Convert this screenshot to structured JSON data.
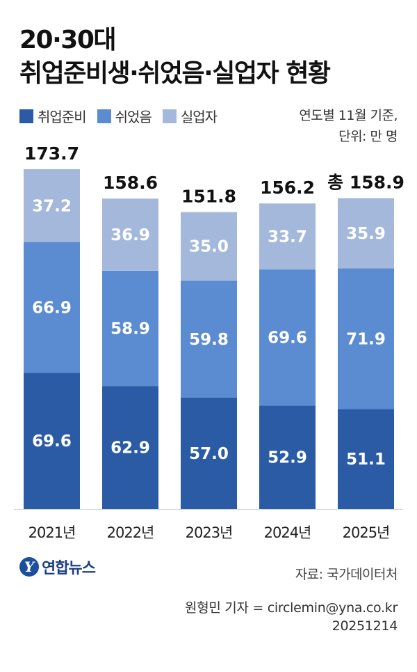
{
  "title": {
    "line1": "20·30대",
    "line2": "취업준비생·쉬었음·실업자 현황"
  },
  "legend": [
    {
      "label": "취업준비",
      "color": "#2b5ba5"
    },
    {
      "label": "쉬었음",
      "color": "#5b8bd0"
    },
    {
      "label": "실업자",
      "color": "#a4b8dc"
    }
  ],
  "note": {
    "line1": "연도별 11월 기준,",
    "line2": "단위: 만 명"
  },
  "chart_data": {
    "type": "bar",
    "stacked": true,
    "categories": [
      "2021년",
      "2022년",
      "2023년",
      "2024년",
      "2025년"
    ],
    "series": [
      {
        "name": "취업준비",
        "values": [
          69.6,
          62.9,
          57.0,
          52.9,
          51.1
        ],
        "color": "#2b5ba5",
        "labels": [
          "69.6",
          "62.9",
          "57.0",
          "52.9",
          "51.1"
        ]
      },
      {
        "name": "쉬었음",
        "values": [
          66.9,
          58.9,
          59.8,
          69.6,
          71.9
        ],
        "color": "#5b8bd0",
        "labels": [
          "66.9",
          "58.9",
          "59.8",
          "69.6",
          "71.9"
        ]
      },
      {
        "name": "실업자",
        "values": [
          37.2,
          36.9,
          35.0,
          33.7,
          35.9
        ],
        "color": "#a4b8dc",
        "labels": [
          "37.2",
          "36.9",
          "35.0",
          "33.7",
          "35.9"
        ]
      }
    ],
    "totals": [
      173.7,
      158.6,
      151.8,
      156.2,
      158.9
    ],
    "total_labels": [
      "173.7",
      "158.6",
      "151.8",
      "156.2",
      "총 158.9"
    ],
    "ylim": [
      0,
      173.7
    ]
  },
  "footer": {
    "logo_text": "연합뉴스",
    "logo_mark": "Y",
    "source": "자료: 국가데이터처",
    "reporter": "원형민 기자 = circlemin@yna.co.kr",
    "date": "20251214"
  }
}
